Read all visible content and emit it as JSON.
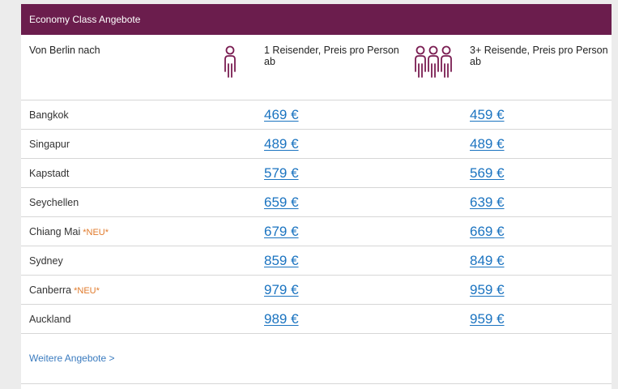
{
  "header": {
    "title": "Economy Class Angebote"
  },
  "columns": {
    "from": "Von Berlin nach",
    "single": "1 Reisender, Preis pro Person ab",
    "group": "3+ Reisende, Preis pro Person ab"
  },
  "icons": {
    "single": "single-person-icon",
    "group": "group-of-persons-icon"
  },
  "rows": [
    {
      "city": "Bangkok",
      "new": "",
      "p1": "469 €",
      "p2": "459 €"
    },
    {
      "city": "Singapur",
      "new": "",
      "p1": "489 €",
      "p2": "489 €"
    },
    {
      "city": "Kapstadt",
      "new": "",
      "p1": "579 €",
      "p2": "569 €"
    },
    {
      "city": "Seychellen",
      "new": "",
      "p1": "659 €",
      "p2": "639 €"
    },
    {
      "city": "Chiang Mai",
      "new": "*NEU*",
      "p1": "679 €",
      "p2": "669 €"
    },
    {
      "city": "Sydney",
      "new": "",
      "p1": "859 €",
      "p2": "849 €"
    },
    {
      "city": "Canberra",
      "new": "*NEU*",
      "p1": "979 €",
      "p2": "959 €"
    },
    {
      "city": "Auckland",
      "new": "",
      "p1": "989 €",
      "p2": "959 €"
    }
  ],
  "more_link": "Weitere Angebote >",
  "colors": {
    "header_bg": "#6b1d4d",
    "price_link": "#1a73c0",
    "new_badge": "#e07a2b"
  }
}
